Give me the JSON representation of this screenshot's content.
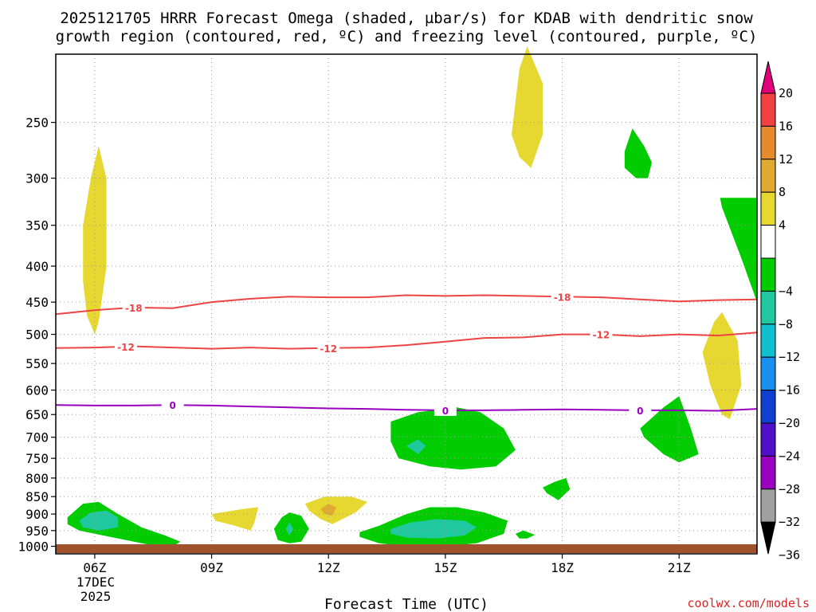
{
  "chart_data": {
    "type": "time-height contour",
    "title_line1": "2025121705 HRRR Forecast Omega (shaded, µbar/s) for KDAB with dendritic snow",
    "title_line2": "growth region (contoured, red, ºC) and freezing level (contoured, purple, ºC)",
    "xlabel": "Forecast Time (UTC)",
    "x_ticks": [
      {
        "hour": 6,
        "label": "06Z"
      },
      {
        "hour": 9,
        "label": "09Z"
      },
      {
        "hour": 12,
        "label": "12Z"
      },
      {
        "hour": 15,
        "label": "15Z"
      },
      {
        "hour": 18,
        "label": "18Z"
      },
      {
        "hour": 21,
        "label": "21Z"
      }
    ],
    "x_date_label": [
      "17DEC",
      "2025"
    ],
    "xlim": [
      5,
      23
    ],
    "y_pressure_levels": [
      250,
      300,
      350,
      400,
      450,
      500,
      550,
      600,
      650,
      700,
      750,
      800,
      850,
      900,
      950,
      1000
    ],
    "ylim_hpa": [
      200,
      1025
    ],
    "colorbar": {
      "labels": [
        "20",
        "16",
        "12",
        "8",
        "4",
        "−4",
        "−8",
        "−12",
        "−16",
        "−20",
        "−24",
        "−28",
        "−32",
        "−36"
      ],
      "bins": [
        {
          "range": "> 20",
          "color": "#e0007a"
        },
        {
          "range": "16 to 20",
          "color": "#f04040"
        },
        {
          "range": "12 to 16",
          "color": "#e68a2e"
        },
        {
          "range": "8 to 12",
          "color": "#e0aa30"
        },
        {
          "range": "4 to 8",
          "color": "#e6d830"
        },
        {
          "range": "-4 to 4",
          "color": "#ffffff"
        },
        {
          "range": "-8 to -4",
          "color": "#00cc00"
        },
        {
          "range": "-12 to -8",
          "color": "#20c8a0"
        },
        {
          "range": "-16 to -12",
          "color": "#10c0d0"
        },
        {
          "range": "-20 to -16",
          "color": "#1890f0"
        },
        {
          "range": "-24 to -20",
          "color": "#1040d0"
        },
        {
          "range": "-28 to -24",
          "color": "#5010c8"
        },
        {
          "range": "-32 to -28",
          "color": "#9a00c0"
        },
        {
          "range": "-36 to -32",
          "color": "#a0a0a0"
        },
        {
          "range": "< -36",
          "color": "#000000"
        }
      ]
    },
    "temperature_contours": [
      {
        "label": "-18",
        "color": "#ee4444",
        "label_hours": [
          7.0,
          18.0
        ],
        "points": [
          [
            5,
            468
          ],
          [
            6,
            462
          ],
          [
            7,
            458
          ],
          [
            8,
            459
          ],
          [
            9,
            450
          ],
          [
            10,
            445
          ],
          [
            11,
            442
          ],
          [
            12,
            443
          ],
          [
            13,
            443
          ],
          [
            14,
            440
          ],
          [
            15,
            441
          ],
          [
            16,
            440
          ],
          [
            17,
            441
          ],
          [
            18,
            442
          ],
          [
            19,
            443
          ],
          [
            20,
            446
          ],
          [
            21,
            449
          ],
          [
            22,
            447
          ],
          [
            23,
            446
          ]
        ]
      },
      {
        "label": "-12",
        "color": "#ee4444",
        "label_hours": [
          6.8,
          12.0,
          19.0
        ],
        "points": [
          [
            5,
            523
          ],
          [
            6,
            522
          ],
          [
            7,
            520
          ],
          [
            8,
            522
          ],
          [
            9,
            524
          ],
          [
            10,
            522
          ],
          [
            11,
            524
          ],
          [
            12,
            523
          ],
          [
            13,
            522
          ],
          [
            14,
            518
          ],
          [
            15,
            512
          ],
          [
            16,
            506
          ],
          [
            17,
            505
          ],
          [
            18,
            500
          ],
          [
            19,
            500
          ],
          [
            20,
            503
          ],
          [
            21,
            500
          ],
          [
            22,
            502
          ],
          [
            23,
            497
          ]
        ]
      },
      {
        "label": "0",
        "color": "#9a00c0",
        "label_hours": [
          8.0,
          15.0,
          20.0
        ],
        "points": [
          [
            5,
            630
          ],
          [
            6,
            631
          ],
          [
            7,
            631
          ],
          [
            8,
            630
          ],
          [
            9,
            631
          ],
          [
            10,
            633
          ],
          [
            11,
            635
          ],
          [
            12,
            637
          ],
          [
            13,
            638
          ],
          [
            14,
            640
          ],
          [
            15,
            641
          ],
          [
            16,
            641
          ],
          [
            17,
            640
          ],
          [
            18,
            639
          ],
          [
            19,
            640
          ],
          [
            20,
            641
          ],
          [
            21,
            641
          ],
          [
            22,
            642
          ],
          [
            23,
            638
          ]
        ]
      }
    ],
    "omega_regions": [
      {
        "value_bin": "4 to 8",
        "color": "#e6d830",
        "points": [
          [
            5.7,
            350
          ],
          [
            5.9,
            300
          ],
          [
            6.1,
            270
          ],
          [
            6.3,
            300
          ],
          [
            6.3,
            400
          ],
          [
            6.1,
            480
          ],
          [
            6.0,
            500
          ],
          [
            5.8,
            470
          ],
          [
            5.7,
            420
          ]
        ]
      },
      {
        "value_bin": "4 to 8",
        "color": "#e6d830",
        "points": [
          [
            16.7,
            260
          ],
          [
            16.9,
            210
          ],
          [
            17.1,
            195
          ],
          [
            17.5,
            220
          ],
          [
            17.5,
            260
          ],
          [
            17.2,
            290
          ],
          [
            16.9,
            280
          ]
        ]
      },
      {
        "value_bin": "-8 to -4",
        "color": "#00cc00",
        "points": [
          [
            19.6,
            275
          ],
          [
            19.8,
            255
          ],
          [
            20.1,
            270
          ],
          [
            20.3,
            285
          ],
          [
            20.2,
            300
          ],
          [
            19.9,
            300
          ],
          [
            19.6,
            290
          ]
        ]
      },
      {
        "value_bin": "-8 to -4",
        "color": "#00cc00",
        "points": [
          [
            22.05,
            320
          ],
          [
            23,
            320
          ],
          [
            23,
            450
          ],
          [
            22.6,
            390
          ],
          [
            22.1,
            330
          ]
        ]
      },
      {
        "value_bin": "4 to 8",
        "color": "#e6d830",
        "points": [
          [
            21.6,
            530
          ],
          [
            21.9,
            480
          ],
          [
            22.1,
            465
          ],
          [
            22.5,
            510
          ],
          [
            22.6,
            590
          ],
          [
            22.3,
            660
          ],
          [
            22.1,
            650
          ],
          [
            21.8,
            590
          ]
        ]
      },
      {
        "value_bin": "-8 to -4",
        "color": "#00cc00",
        "points": [
          [
            20.0,
            680
          ],
          [
            20.6,
            635
          ],
          [
            21.0,
            612
          ],
          [
            21.3,
            680
          ],
          [
            21.5,
            740
          ],
          [
            21.0,
            760
          ],
          [
            20.6,
            740
          ],
          [
            20.1,
            700
          ]
        ]
      },
      {
        "value_bin": "-8 to -4",
        "color": "#00cc00",
        "points": [
          [
            13.6,
            665
          ],
          [
            14.3,
            645
          ],
          [
            15.3,
            635
          ],
          [
            15.9,
            645
          ],
          [
            16.5,
            680
          ],
          [
            16.8,
            730
          ],
          [
            16.3,
            770
          ],
          [
            15.4,
            778
          ],
          [
            14.6,
            770
          ],
          [
            13.8,
            750
          ],
          [
            13.6,
            710
          ]
        ]
      },
      {
        "value_bin": "-12 to -8",
        "color": "#20c8a0",
        "points": [
          [
            14.0,
            720
          ],
          [
            14.3,
            705
          ],
          [
            14.5,
            720
          ],
          [
            14.3,
            740
          ]
        ]
      },
      {
        "value_bin": "-8 to -4",
        "color": "#00cc00",
        "points": [
          [
            17.5,
            825
          ],
          [
            17.8,
            810
          ],
          [
            18.1,
            800
          ],
          [
            18.2,
            830
          ],
          [
            17.9,
            860
          ],
          [
            17.6,
            840
          ]
        ]
      },
      {
        "value_bin": "-8 to -4",
        "color": "#00cc00",
        "points": [
          [
            5.3,
            910
          ],
          [
            5.7,
            870
          ],
          [
            6.1,
            865
          ],
          [
            6.6,
            900
          ],
          [
            7.2,
            940
          ],
          [
            7.8,
            965
          ],
          [
            8.2,
            985
          ],
          [
            8.0,
            1000
          ],
          [
            7.4,
            995
          ],
          [
            6.4,
            970
          ],
          [
            5.6,
            950
          ],
          [
            5.3,
            930
          ]
        ]
      },
      {
        "value_bin": "-12 to -8",
        "color": "#20c8a0",
        "points": [
          [
            5.6,
            920
          ],
          [
            5.9,
            895
          ],
          [
            6.3,
            890
          ],
          [
            6.6,
            910
          ],
          [
            6.6,
            940
          ],
          [
            6.1,
            950
          ],
          [
            5.7,
            940
          ]
        ]
      },
      {
        "value_bin": "4 to 8",
        "color": "#e6d830",
        "points": [
          [
            9.0,
            900
          ],
          [
            9.8,
            885
          ],
          [
            10.2,
            880
          ],
          [
            10.1,
            925
          ],
          [
            10.0,
            950
          ],
          [
            9.6,
            935
          ],
          [
            9.1,
            920
          ]
        ]
      },
      {
        "value_bin": "-8 to -4",
        "color": "#00cc00",
        "points": [
          [
            10.6,
            945
          ],
          [
            10.8,
            910
          ],
          [
            11.0,
            895
          ],
          [
            11.3,
            905
          ],
          [
            11.5,
            945
          ],
          [
            11.3,
            985
          ],
          [
            11.0,
            990
          ],
          [
            10.7,
            980
          ]
        ]
      },
      {
        "value_bin": "-12 to -8",
        "color": "#20c8a0",
        "points": [
          [
            10.9,
            945
          ],
          [
            11.0,
            925
          ],
          [
            11.1,
            945
          ],
          [
            11.0,
            965
          ]
        ]
      },
      {
        "value_bin": "4 to 8",
        "color": "#e6d830",
        "points": [
          [
            11.4,
            870
          ],
          [
            11.9,
            850
          ],
          [
            12.6,
            850
          ],
          [
            13.0,
            865
          ],
          [
            12.7,
            895
          ],
          [
            12.1,
            930
          ],
          [
            11.8,
            915
          ],
          [
            11.5,
            890
          ]
        ]
      },
      {
        "value_bin": "8 to 12",
        "color": "#e0aa30",
        "points": [
          [
            11.8,
            885
          ],
          [
            12.0,
            870
          ],
          [
            12.2,
            880
          ],
          [
            12.1,
            905
          ],
          [
            11.9,
            900
          ]
        ]
      },
      {
        "value_bin": "-8 to -4",
        "color": "#00cc00",
        "points": [
          [
            12.8,
            955
          ],
          [
            13.3,
            935
          ],
          [
            14.0,
            900
          ],
          [
            14.6,
            880
          ],
          [
            15.3,
            880
          ],
          [
            16.0,
            895
          ],
          [
            16.6,
            920
          ],
          [
            16.5,
            960
          ],
          [
            15.8,
            990
          ],
          [
            15.0,
            1000
          ],
          [
            14.0,
            1000
          ],
          [
            13.3,
            990
          ],
          [
            12.8,
            970
          ]
        ]
      },
      {
        "value_bin": "-12 to -8",
        "color": "#20c8a0",
        "points": [
          [
            13.6,
            945
          ],
          [
            14.1,
            925
          ],
          [
            14.8,
            915
          ],
          [
            15.5,
            920
          ],
          [
            15.8,
            940
          ],
          [
            15.5,
            965
          ],
          [
            14.8,
            975
          ],
          [
            14.0,
            972
          ],
          [
            13.6,
            960
          ]
        ]
      },
      {
        "value_bin": "-8 to -4",
        "color": "#00cc00",
        "points": [
          [
            16.8,
            960
          ],
          [
            17.0,
            950
          ],
          [
            17.3,
            963
          ],
          [
            17.1,
            975
          ],
          [
            16.9,
            975
          ]
        ]
      }
    ],
    "surface_bar": {
      "color": "#a0522d"
    }
  },
  "credit": "coolwx.com/models"
}
